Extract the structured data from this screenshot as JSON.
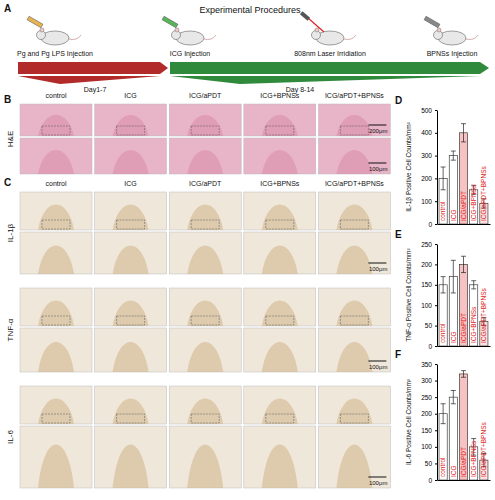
{
  "chart_data": [
    {
      "type": "bar",
      "ylabel": "IL-1β Positive Cell Counts/mm²",
      "categories": [
        "control",
        "ICG",
        "ICG/aPDT",
        "ICG+BPNSs",
        "ICG/aPDT+BPNSs"
      ],
      "values": [
        200,
        300,
        400,
        150,
        90
      ],
      "errors": [
        50,
        20,
        40,
        20,
        20
      ],
      "colors": [
        "#ffffff",
        "#ffffff",
        "#f6c2c2",
        "#ffffff",
        "#fbe2e2"
      ],
      "ylim": [
        0,
        500
      ],
      "yticks": [
        0,
        100,
        200,
        300,
        400,
        500
      ]
    },
    {
      "type": "bar",
      "ylabel": "TNF-α Positive Cell Counts/mm²",
      "categories": [
        "control",
        "ICG",
        "ICG/aPDT",
        "ICG+BPNSs",
        "ICG/aPDT+BPNSs"
      ],
      "values": [
        150,
        170,
        200,
        150,
        60
      ],
      "errors": [
        20,
        40,
        20,
        10,
        10
      ],
      "colors": [
        "#ffffff",
        "#ffffff",
        "#f6c2c2",
        "#ffffff",
        "#fbe2e2"
      ],
      "ylim": [
        0,
        250
      ],
      "yticks": [
        0,
        50,
        100,
        150,
        200,
        250
      ]
    },
    {
      "type": "bar",
      "ylabel": "IL-6 Positive Cell Counts/mm²",
      "categories": [
        "control",
        "ICG",
        "ICG/aPDT",
        "ICG+BPNSs",
        "ICG/aPDT+BPNSs"
      ],
      "values": [
        200,
        250,
        320,
        100,
        60
      ],
      "errors": [
        30,
        20,
        10,
        25,
        20
      ],
      "colors": [
        "#ffffff",
        "#ffffff",
        "#f6c2c2",
        "#ffffff",
        "#fbe2e2"
      ],
      "ylim": [
        0,
        350
      ],
      "yticks": [
        0,
        50,
        100,
        150,
        200,
        250,
        300,
        350
      ]
    }
  ],
  "figure": {
    "panel_labels": [
      "A",
      "B",
      "C",
      "D",
      "E",
      "F"
    ],
    "schematic": {
      "title": "Experimental Procedures",
      "steps": [
        "Pg and Pg LPS Injection",
        "ICG Injection",
        "808nm Laser Irridiation",
        "BPNSs Injection"
      ],
      "phases": [
        "Day1-7",
        "Day 8-14"
      ]
    },
    "groups": [
      "control",
      "ICG",
      "ICG/aPDT",
      "ICG+BPNSs",
      "ICG/aPDT+BPNSs"
    ],
    "histology_rows": [
      {
        "label": "H&E",
        "scale_bars": [
          "200μm",
          "100μm"
        ]
      },
      {
        "label": "IL-1β",
        "scale_bars": [
          "100μm"
        ]
      },
      {
        "label": "TNF-α",
        "scale_bars": [
          "100μm"
        ]
      },
      {
        "label": "IL-6",
        "scale_bars": [
          "100μm"
        ]
      }
    ]
  }
}
